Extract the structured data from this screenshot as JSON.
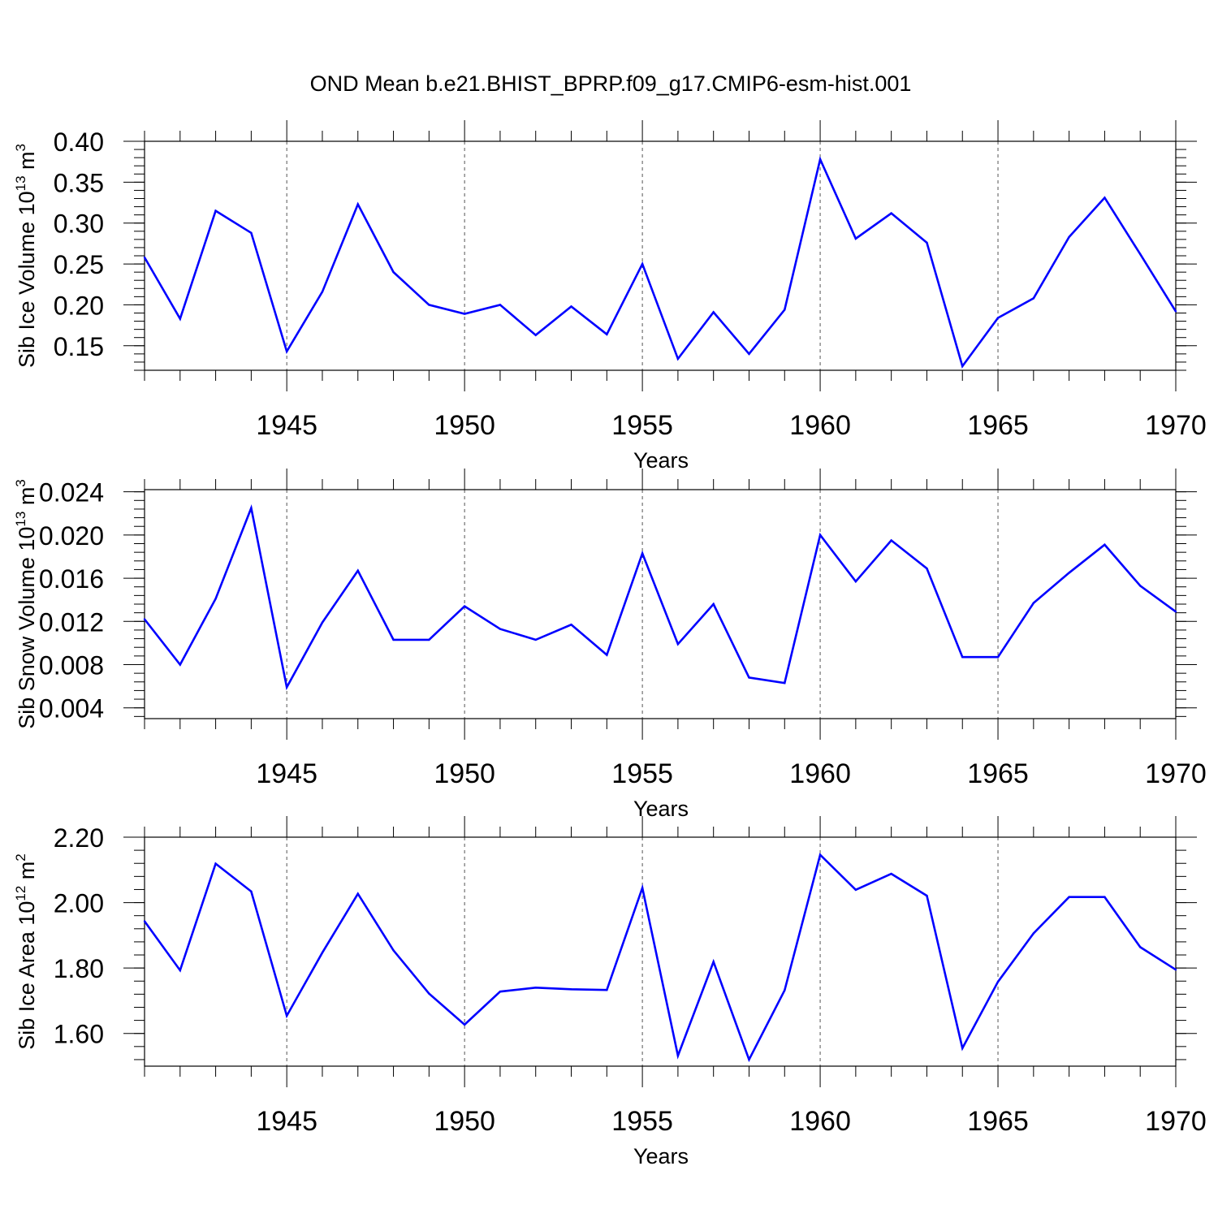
{
  "title": "OND Mean b.e21.BHIST_BPRP.f09_g17.CMIP6-esm-hist.001",
  "colors": {
    "line": "#0000ff",
    "axis": "#000000",
    "grid": "#555555"
  },
  "chart_data": [
    {
      "type": "line",
      "xlabel": "Years",
      "ylabel": {
        "prefix": "Sib Ice Volume 10",
        "exp": "13",
        "unit": " m",
        "unit_exp": "3"
      },
      "xlim": [
        1941,
        1970
      ],
      "ylim": [
        0.12,
        0.4
      ],
      "x_ticks": [
        "1945",
        "1950",
        "1955",
        "1960",
        "1965",
        "1970"
      ],
      "y_ticks": [
        "0.15",
        "0.20",
        "0.25",
        "0.30",
        "0.35",
        "0.40"
      ],
      "y_minor_step": 0.01,
      "grid": "dashed vertical at major x ticks",
      "series": [
        {
          "name": "Sib Ice Volume",
          "x": [
            1941,
            1942,
            1943,
            1944,
            1945,
            1946,
            1947,
            1948,
            1949,
            1950,
            1951,
            1952,
            1953,
            1954,
            1955,
            1956,
            1957,
            1958,
            1959,
            1960,
            1961,
            1962,
            1963,
            1964,
            1965,
            1966,
            1967,
            1968,
            1969,
            1970
          ],
          "values": [
            0.258,
            0.183,
            0.315,
            0.288,
            0.143,
            0.216,
            0.323,
            0.24,
            0.2,
            0.189,
            0.2,
            0.163,
            0.198,
            0.164,
            0.25,
            0.134,
            0.191,
            0.14,
            0.194,
            0.378,
            0.281,
            0.312,
            0.276,
            0.125,
            0.184,
            0.208,
            0.283,
            0.331,
            0.262,
            0.192
          ]
        }
      ]
    },
    {
      "type": "line",
      "xlabel": "Years",
      "ylabel": {
        "prefix": "Sib Snow Volume 10",
        "exp": "13",
        "unit": " m",
        "unit_exp": "3"
      },
      "xlim": [
        1941,
        1970
      ],
      "ylim": [
        0.003,
        0.0242
      ],
      "x_ticks": [
        "1945",
        "1950",
        "1955",
        "1960",
        "1965",
        "1970"
      ],
      "y_ticks": [
        "0.004",
        "0.008",
        "0.012",
        "0.016",
        "0.020",
        "0.024"
      ],
      "y_minor_step": 0.0008,
      "grid": "dashed vertical at major x ticks",
      "series": [
        {
          "name": "Sib Snow Volume",
          "x": [
            1941,
            1942,
            1943,
            1944,
            1945,
            1946,
            1947,
            1948,
            1949,
            1950,
            1951,
            1952,
            1953,
            1954,
            1955,
            1956,
            1957,
            1958,
            1959,
            1960,
            1961,
            1962,
            1963,
            1964,
            1965,
            1966,
            1967,
            1968,
            1969,
            1970
          ],
          "values": [
            0.0122,
            0.008,
            0.0141,
            0.0225,
            0.0059,
            0.0119,
            0.0167,
            0.0103,
            0.0103,
            0.0134,
            0.0113,
            0.0103,
            0.0117,
            0.0089,
            0.0183,
            0.0099,
            0.0136,
            0.0068,
            0.0063,
            0.02,
            0.0157,
            0.0195,
            0.0169,
            0.0087,
            0.0087,
            0.0137,
            0.0165,
            0.0191,
            0.0153,
            0.0129
          ]
        }
      ]
    },
    {
      "type": "line",
      "xlabel": "Years",
      "ylabel": {
        "prefix": "Sib Ice Area 10",
        "exp": "12",
        "unit": " m",
        "unit_exp": "2"
      },
      "xlim": [
        1941,
        1970
      ],
      "ylim": [
        1.5,
        2.2
      ],
      "x_ticks": [
        "1945",
        "1950",
        "1955",
        "1960",
        "1965",
        "1970"
      ],
      "y_ticks": [
        "1.60",
        "1.80",
        "2.00",
        "2.20"
      ],
      "y_minor_step": 0.04,
      "grid": "dashed vertical at major x ticks",
      "series": [
        {
          "name": "Sib Ice Area",
          "x": [
            1941,
            1942,
            1943,
            1944,
            1945,
            1946,
            1947,
            1948,
            1949,
            1950,
            1951,
            1952,
            1953,
            1954,
            1955,
            1956,
            1957,
            1958,
            1959,
            1960,
            1961,
            1962,
            1963,
            1964,
            1965,
            1966,
            1967,
            1968,
            1969,
            1970
          ],
          "values": [
            1.943,
            1.793,
            2.119,
            2.034,
            1.654,
            1.847,
            2.027,
            1.854,
            1.722,
            1.627,
            1.728,
            1.74,
            1.735,
            1.733,
            2.045,
            1.532,
            1.819,
            1.52,
            1.732,
            2.146,
            2.039,
            2.088,
            2.021,
            1.555,
            1.758,
            1.906,
            2.017,
            2.017,
            1.864,
            1.795
          ]
        }
      ]
    }
  ]
}
